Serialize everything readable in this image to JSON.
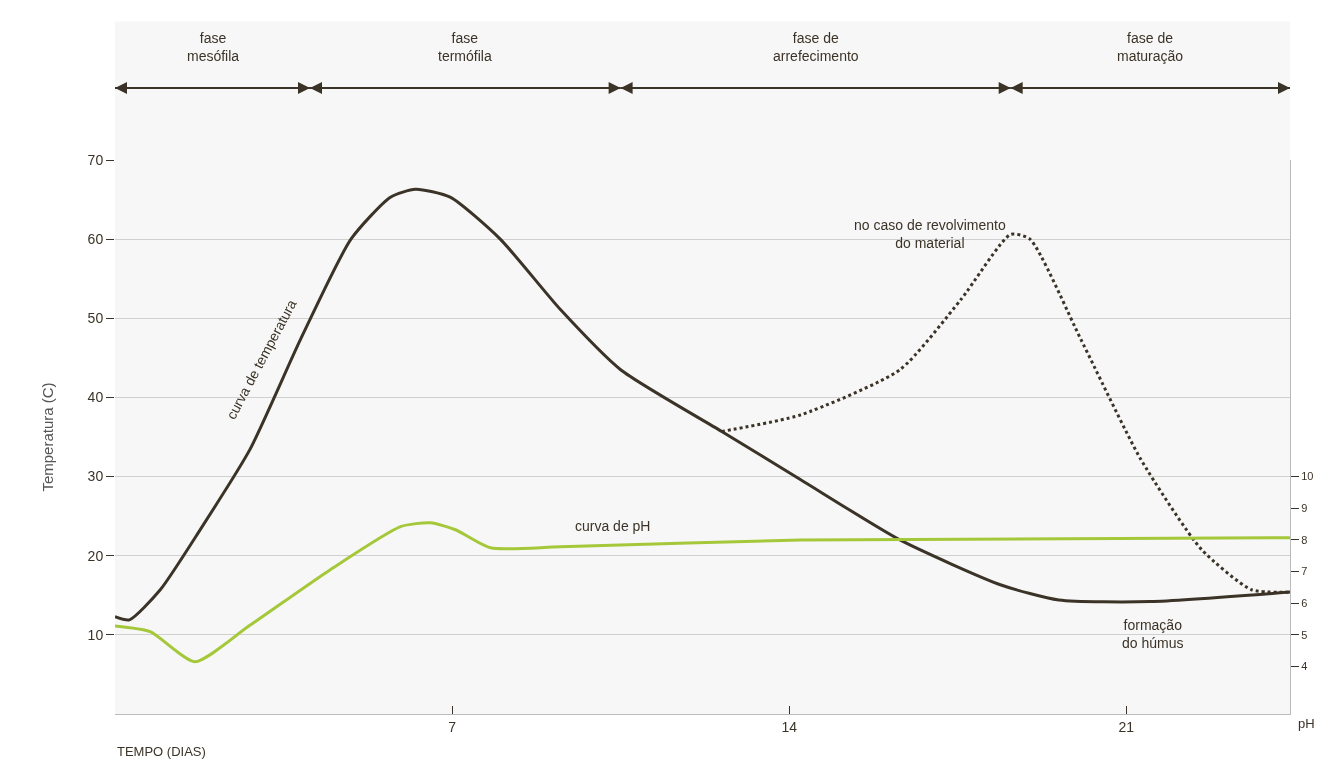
{
  "chart_data": {
    "type": "line",
    "xlabel": "TEMPO (DIAS)",
    "ylabel": "Temperatura (C)",
    "y2label": "pH",
    "xlim": [
      0,
      24.4
    ],
    "xticks": [
      7,
      14,
      21
    ],
    "ylim": [
      0,
      70
    ],
    "yticks": [
      10,
      20,
      30,
      40,
      50,
      60,
      70
    ],
    "y2lim": [
      2.5,
      20
    ],
    "y2ticks": [
      4,
      5,
      6,
      7,
      8,
      9,
      10
    ],
    "grid": "y",
    "marker": "none",
    "series": [
      {
        "color": "#3b3327",
        "line_style": "solid",
        "x": [
          0,
          0.3,
          0.94,
          1.77,
          2.8,
          3.85,
          4.9,
          5.72,
          6.24,
          6.96,
          8.0,
          9.25,
          10.5,
          12.6,
          14.24,
          16.3,
          18.4,
          19.6,
          21.5,
          24.4
        ],
        "values": [
          12.3,
          11.9,
          15.7,
          23.3,
          33.4,
          47.3,
          60,
          65.3,
          66.3,
          65.3,
          60,
          51.1,
          43.5,
          35.7,
          29.6,
          22,
          16.3,
          14.4,
          14.2,
          15.4
        ]
      },
      {
        "color": "#3b3327",
        "line_style": "dotted",
        "x": [
          12.6,
          14.24,
          16.3,
          17.57,
          18.6,
          19.0,
          20.06,
          21.3,
          22.56,
          23.6,
          24.4
        ],
        "values": [
          35.7,
          37.8,
          43.5,
          52.4,
          60.6,
          60,
          47.3,
          32.2,
          20.8,
          15.7,
          15.4
        ]
      },
      {
        "color": "#a5c83a",
        "line_style": "solid",
        "axis": "y2",
        "x": [
          0,
          0.73,
          1.66,
          2.8,
          4.47,
          5.93,
          6.55,
          7.07,
          7.8,
          9.25,
          14.24,
          24.4
        ],
        "values": [
          5.28,
          5.1,
          4.15,
          5.3,
          7.06,
          8.42,
          8.54,
          8.32,
          7.75,
          7.78,
          8.0,
          8.07
        ]
      }
    ],
    "bands": [
      {
        "axis": "x",
        "from": 0,
        "to": 4.05,
        "label": "fase\nmesófila",
        "color": "#3b3327"
      },
      {
        "axis": "x",
        "from": 4.05,
        "to": 10.5,
        "label": "fase\ntermófila",
        "color": "#3b3327"
      },
      {
        "axis": "x",
        "from": 10.5,
        "to": 18.6,
        "label": "fase de\narrefecimento",
        "color": "#3b3327"
      },
      {
        "axis": "x",
        "from": 18.6,
        "to": 24.4,
        "label": "fase de\nmaturação",
        "color": "#3b3327"
      }
    ],
    "annotations": [
      "curva de temperatura",
      "curva de pH",
      "no caso de revolvimento\ndo material",
      "formação\ndo húmus"
    ]
  }
}
